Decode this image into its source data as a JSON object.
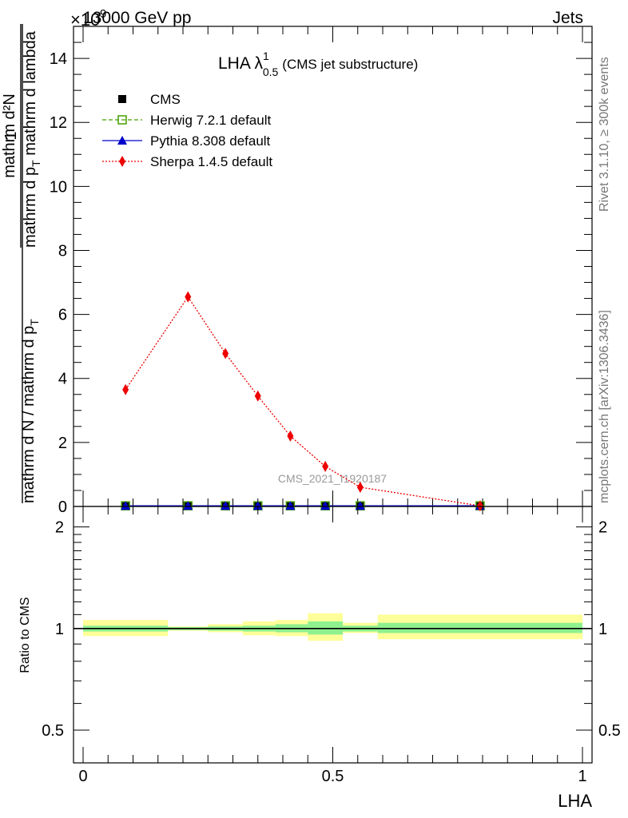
{
  "header": {
    "left": "13000 GeV pp",
    "right": "Jets",
    "exponent": "×10",
    "exponent_power": "-9"
  },
  "side_labels": {
    "rivet": "Rivet 3.1.10, ≥ 300k events",
    "mcplots": "mcplots.cern.ch [arXiv:1306.3436]"
  },
  "watermark": "CMS_2021_I1920187",
  "chart_data": [
    {
      "type": "line",
      "panel": "main",
      "title_main": "LHA λ",
      "title_sup": "1",
      "title_sub": "0.5",
      "title_suffix": "(CMS jet substructure)",
      "ylabel_numerator": "mathrm d²N",
      "ylabel_denominator": "mathrm d p",
      "ylabel_denominator_sub": "T",
      "ylabel_denominator_tail": " mathrm d lambda",
      "ylabel_prefix_num": "1",
      "ylabel_prefix_den": "mathrm d N / mathrm d p",
      "ylabel_prefix_sub": "T",
      "ylim": [
        0,
        15
      ],
      "yticks": [
        0,
        2,
        4,
        6,
        8,
        10,
        12,
        14
      ],
      "ytick_labels": [
        "0",
        "2",
        "4",
        "6",
        "8",
        "10",
        "12",
        "14"
      ],
      "xlim": [
        0,
        1
      ],
      "legend": [
        {
          "label": "CMS",
          "color": "#000000",
          "marker": "square-filled",
          "line": "none"
        },
        {
          "label": "Herwig 7.2.1 default",
          "color": "#44a000",
          "marker": "square-open",
          "line": "dashed"
        },
        {
          "label": "Pythia 8.308 default",
          "color": "#0000cc",
          "marker": "triangle",
          "line": "solid"
        },
        {
          "label": "Sherpa 1.4.5 default",
          "color": "#ee0000",
          "marker": "diamond",
          "line": "dotted"
        }
      ],
      "series": [
        {
          "name": "CMS",
          "x": [
            0.085,
            0.21,
            0.285,
            0.35,
            0.415,
            0.485,
            0.555,
            0.795
          ],
          "y": [
            0.02,
            0.02,
            0.02,
            0.02,
            0.02,
            0.02,
            0.02,
            0.02
          ]
        },
        {
          "name": "Herwig 7.2.1 default",
          "x": [
            0.085,
            0.21,
            0.285,
            0.35,
            0.415,
            0.485,
            0.555,
            0.795
          ],
          "y": [
            0.02,
            0.02,
            0.02,
            0.02,
            0.02,
            0.02,
            0.02,
            0.02
          ]
        },
        {
          "name": "Pythia 8.308 default",
          "x": [
            0.085,
            0.21,
            0.285,
            0.35,
            0.415,
            0.485,
            0.555,
            0.795
          ],
          "y": [
            0.02,
            0.02,
            0.02,
            0.02,
            0.02,
            0.02,
            0.02,
            0.02
          ]
        },
        {
          "name": "Sherpa 1.4.5 default",
          "x": [
            0.085,
            0.21,
            0.285,
            0.35,
            0.415,
            0.485,
            0.555,
            0.795
          ],
          "y": [
            3.65,
            6.55,
            4.78,
            3.45,
            2.2,
            1.25,
            0.6,
            0.02
          ]
        }
      ]
    },
    {
      "type": "area",
      "panel": "ratio",
      "ylabel": "Ratio to CMS",
      "ylim": [
        0.4,
        2.3
      ],
      "ytick_labels": [
        "0.5",
        "1",
        "2"
      ],
      "yticks": [
        0.5,
        1,
        2
      ],
      "xlabel": "LHA",
      "xticks": [
        0,
        0.5,
        1
      ],
      "xtick_labels": [
        "0",
        "0.5",
        "1"
      ],
      "reference": 1,
      "bands": [
        {
          "x0": 0.0,
          "x1": 0.17,
          "stat": [
            0.98,
            1.02
          ],
          "total": [
            0.95,
            1.06
          ]
        },
        {
          "x0": 0.17,
          "x1": 0.25,
          "stat": [
            0.99,
            1.01
          ],
          "total": [
            0.985,
            1.015
          ]
        },
        {
          "x0": 0.25,
          "x1": 0.32,
          "stat": [
            0.985,
            1.015
          ],
          "total": [
            0.975,
            1.03
          ]
        },
        {
          "x0": 0.32,
          "x1": 0.385,
          "stat": [
            0.98,
            1.02
          ],
          "total": [
            0.955,
            1.05
          ]
        },
        {
          "x0": 0.385,
          "x1": 0.45,
          "stat": [
            0.975,
            1.03
          ],
          "total": [
            0.95,
            1.06
          ]
        },
        {
          "x0": 0.45,
          "x1": 0.52,
          "stat": [
            0.96,
            1.05
          ],
          "total": [
            0.92,
            1.11
          ]
        },
        {
          "x0": 0.52,
          "x1": 0.59,
          "stat": [
            0.98,
            1.02
          ],
          "total": [
            0.97,
            1.04
          ]
        },
        {
          "x0": 0.59,
          "x1": 1.0,
          "stat": [
            0.97,
            1.04
          ],
          "total": [
            0.93,
            1.1
          ]
        }
      ],
      "colors": {
        "stat": "#8ef08e",
        "total": "#ffff99",
        "reference": "#000000"
      }
    }
  ]
}
